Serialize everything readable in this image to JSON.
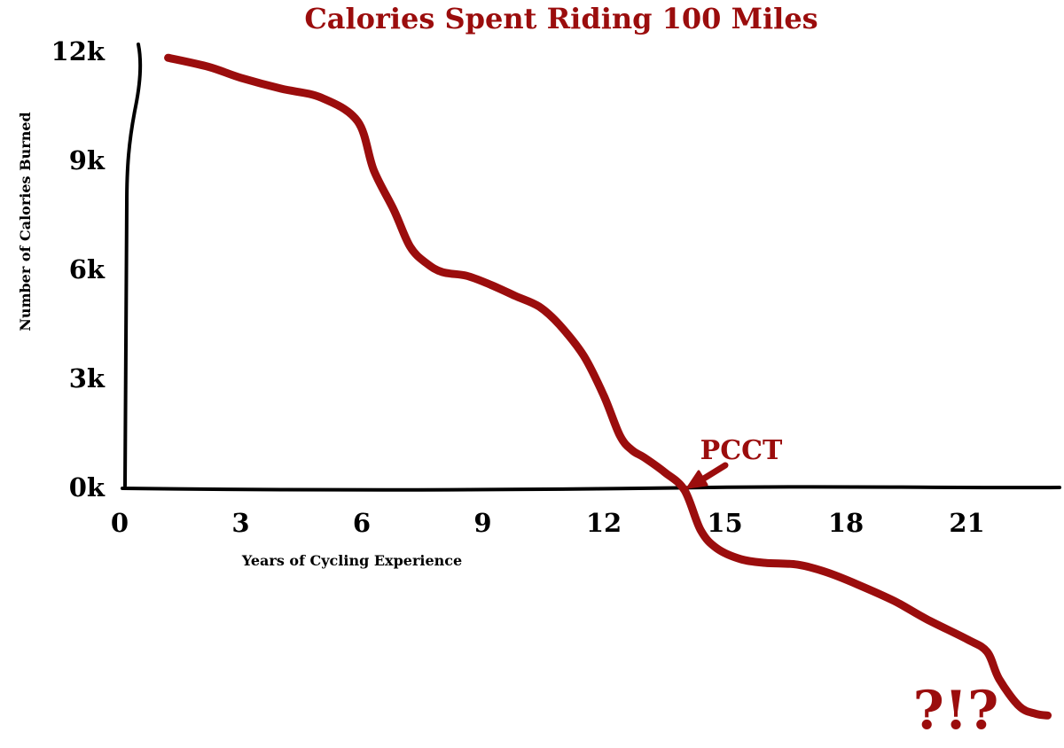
{
  "chart_data": {
    "type": "line",
    "title": "Calories Spent Riding 100 Miles",
    "xlabel": "Years of Cycling Experience",
    "ylabel": "Number of Calories Burned",
    "xlim": [
      0,
      23.5
    ],
    "ylim": [
      -6500,
      12000
    ],
    "x_ticks": [
      {
        "value": 0,
        "label": "0"
      },
      {
        "value": 3,
        "label": "3"
      },
      {
        "value": 6,
        "label": "6"
      },
      {
        "value": 9,
        "label": "9"
      },
      {
        "value": 12,
        "label": "12"
      },
      {
        "value": 15,
        "label": "15"
      },
      {
        "value": 18,
        "label": "18"
      },
      {
        "value": 21,
        "label": "21"
      }
    ],
    "y_ticks": [
      {
        "value": 0,
        "label": "0k"
      },
      {
        "value": 3000,
        "label": "3k"
      },
      {
        "value": 6000,
        "label": "6k"
      },
      {
        "value": 9000,
        "label": "9k"
      },
      {
        "value": 12000,
        "label": "12k"
      }
    ],
    "grid": false,
    "legend": "none",
    "series": [
      {
        "color": "#9b0d0d",
        "x": [
          1.2,
          2.2,
          3.0,
          4.0,
          5.0,
          5.9,
          6.3,
          6.8,
          7.2,
          7.6,
          8.0,
          8.6,
          9.2,
          9.8,
          10.4,
          10.9,
          11.5,
          12.0,
          12.4,
          12.7,
          13.0,
          13.5,
          14.0,
          14.4,
          14.8,
          15.4,
          16.0,
          16.8,
          17.5,
          18.3,
          19.2,
          20.0,
          21.0,
          21.5,
          21.8,
          22.3,
          22.7,
          23.0
        ],
        "y": [
          11800,
          11550,
          11250,
          10950,
          10700,
          10050,
          8700,
          7600,
          6600,
          6150,
          5900,
          5800,
          5550,
          5250,
          4950,
          4450,
          3600,
          2500,
          1400,
          1000,
          800,
          400,
          -100,
          -1200,
          -1700,
          -2000,
          -2100,
          -2150,
          -2350,
          -2700,
          -3150,
          -3650,
          -4200,
          -4550,
          -5300,
          -6050,
          -6250,
          -6300
        ]
      }
    ],
    "annotations": [
      {
        "text": "PCCT",
        "x": 14.4,
        "y": 0,
        "color": "#9b0d0d"
      },
      {
        "text": "?!?",
        "x": 21.8,
        "y": -6000,
        "color": "#9b0d0d"
      }
    ]
  }
}
